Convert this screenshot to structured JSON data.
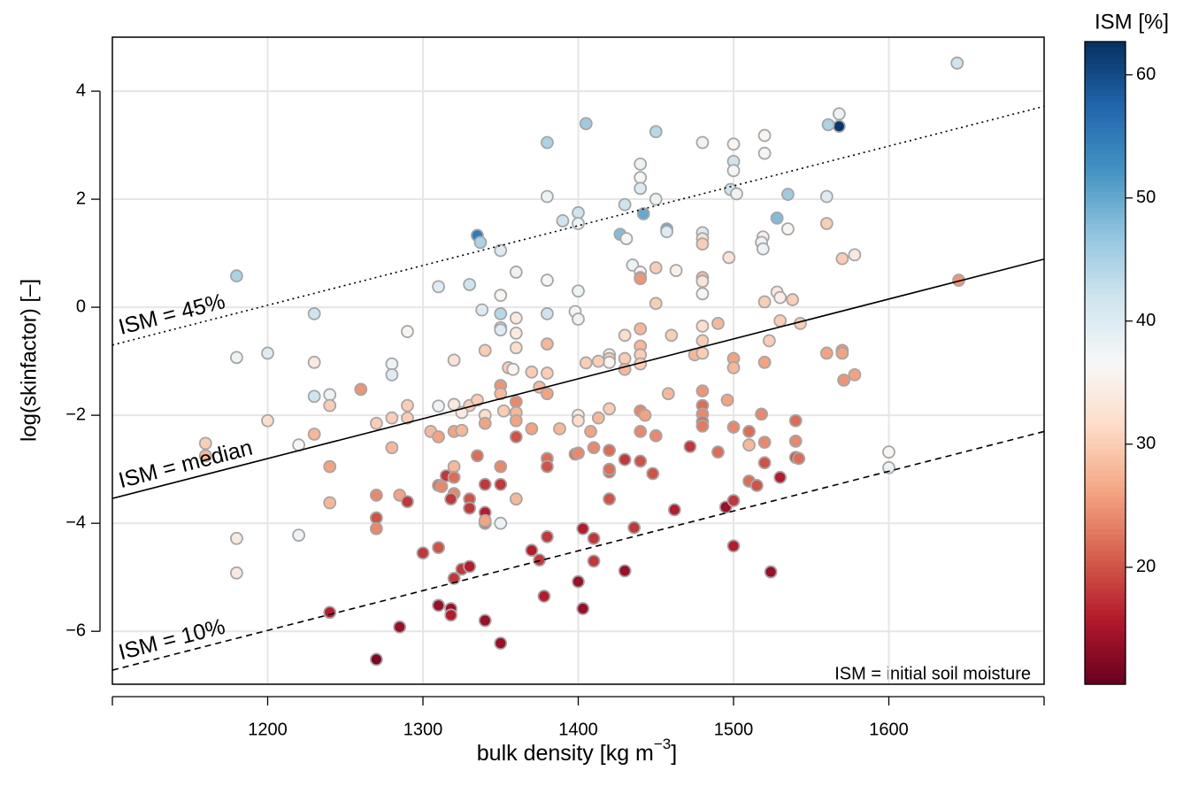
{
  "chart_data": {
    "type": "scatter",
    "x_label": [
      "bulk density [kg m",
      "−3",
      "]"
    ],
    "y_label": "log(skinfactor) [–]",
    "xlim": [
      1100,
      1700
    ],
    "xticks": [
      1200,
      1300,
      1400,
      1500,
      1600
    ],
    "ylim": [
      -6.98,
      5.0
    ],
    "yticks": [
      {
        "value": -6,
        "label": "−6"
      },
      {
        "value": -4,
        "label": "−4"
      },
      {
        "value": -2,
        "label": "−2"
      },
      0,
      2,
      4
    ],
    "grid": true,
    "note": "ISM = initial soil moisture",
    "lines": [
      {
        "name": "ISM = 45%",
        "style": "dotted",
        "x": [
          1100,
          1700
        ],
        "values": [
          -0.7,
          3.72
        ]
      },
      {
        "name": "ISM = median",
        "style": "solid",
        "x": [
          1100,
          1700
        ],
        "values": [
          -3.54,
          0.89
        ]
      },
      {
        "name": "ISM = 10%",
        "style": "dashed",
        "x": [
          1100,
          1700
        ],
        "values": [
          -6.72,
          -2.3
        ]
      }
    ],
    "colorbar": {
      "label": "ISM [%]",
      "lim": [
        10.5,
        62.7
      ],
      "ticks": [
        20,
        30,
        40,
        50,
        60
      ],
      "colors": [
        "#67001f",
        "#b2182b",
        "#d6604d",
        "#f4a582",
        "#fddbc7",
        "#f7f7f7",
        "#d1e5f0",
        "#92c5de",
        "#4393c3",
        "#2166ac",
        "#053061"
      ]
    },
    "x": [
      1644,
      1568,
      1568,
      1561,
      1405,
      1380,
      1450,
      1480,
      1500,
      1520,
      1520,
      1500,
      1500,
      1440,
      1440,
      1440,
      1450,
      1380,
      1400,
      1400,
      1390,
      1430,
      1442,
      1427,
      1431,
      1457,
      1457,
      1498,
      1502,
      1535,
      1560,
      1528,
      1535,
      1560,
      1480,
      1480,
      1480,
      1519,
      1518,
      1519,
      1335,
      1337,
      1350,
      1360,
      1310,
      1330,
      1380,
      1400,
      1435,
      1440,
      1440,
      1440,
      1450,
      1463,
      1497,
      1570,
      1578,
      1480,
      1480,
      1480,
      1450,
      1528,
      1530,
      1520,
      1538,
      1645,
      1180,
      1230,
      1290,
      1338,
      1350,
      1350,
      1360,
      1380,
      1350,
      1350,
      1360,
      1360,
      1380,
      1398,
      1400,
      1430,
      1440,
      1440,
      1440,
      1440,
      1460,
      1480,
      1480,
      1490,
      1475,
      1480,
      1500,
      1500,
      1523,
      1530,
      1543,
      1560,
      1570,
      1570,
      1571,
      1578,
      1180,
      1200,
      1230,
      1280,
      1280,
      1230,
      1240,
      1240,
      1260,
      1320,
      1340,
      1355,
      1358,
      1380,
      1370,
      1405,
      1420,
      1420,
      1420,
      1430,
      1430,
      1413,
      1520,
      1350,
      1350,
      1360,
      1375,
      1380,
      1310,
      1320,
      1330,
      1335,
      1325,
      1340,
      1352,
      1360,
      1360,
      1340,
      1370,
      1388,
      1400,
      1400,
      1420,
      1413,
      1440,
      1443,
      1458,
      1480,
      1480,
      1480,
      1480,
      1480,
      1496,
      1518,
      1540,
      1540,
      1540,
      1542,
      1500,
      1510,
      1520,
      1510,
      1472,
      1490,
      1160,
      1200,
      1230,
      1270,
      1280,
      1290,
      1290,
      1220,
      1280,
      1305,
      1310,
      1320,
      1325,
      1320,
      1335,
      1350,
      1360,
      1380,
      1380,
      1398,
      1400,
      1410,
      1420,
      1420,
      1420,
      1430,
      1440,
      1448,
      1408,
      1440,
      1450,
      1160,
      1240,
      1270,
      1285,
      1290,
      1310,
      1312,
      1315,
      1320,
      1320,
      1318,
      1330,
      1330,
      1340,
      1340,
      1340,
      1340,
      1350,
      1350,
      1360,
      1420,
      1462,
      1495,
      1500,
      1510,
      1515,
      1520,
      1530,
      1240,
      1270,
      1270,
      1180,
      1220,
      1180,
      1300,
      1310,
      1320,
      1325,
      1330,
      1370,
      1375,
      1380,
      1378,
      1400,
      1403,
      1410,
      1410,
      1403,
      1430,
      1436,
      1500,
      1524,
      1240,
      1285,
      1310,
      1318,
      1318,
      1340,
      1350,
      1270,
      1600,
      1600
    ],
    "values": [
      4.52,
      3.58,
      3.35,
      3.38,
      3.4,
      3.05,
      3.25,
      3.05,
      3.02,
      3.18,
      2.85,
      2.7,
      2.53,
      2.65,
      2.4,
      2.2,
      2.0,
      2.05,
      1.75,
      1.55,
      1.6,
      1.9,
      1.73,
      1.35,
      1.27,
      1.45,
      1.4,
      2.18,
      2.1,
      2.09,
      2.05,
      1.65,
      1.45,
      1.55,
      1.38,
      1.27,
      1.17,
      1.3,
      1.2,
      1.08,
      1.33,
      1.2,
      1.05,
      0.65,
      0.38,
      0.42,
      0.5,
      0.3,
      0.78,
      0.65,
      0.55,
      0.53,
      0.73,
      0.68,
      0.92,
      0.9,
      0.97,
      0.55,
      0.48,
      0.25,
      0.07,
      0.28,
      0.18,
      0.1,
      0.14,
      0.5,
      0.58,
      -0.12,
      -0.45,
      -0.05,
      0.22,
      -0.12,
      -0.2,
      -0.12,
      -0.38,
      -0.42,
      -0.48,
      -0.75,
      -0.68,
      -0.08,
      -0.22,
      -0.52,
      -0.4,
      -0.72,
      -0.88,
      -1.05,
      -0.52,
      -0.35,
      -0.62,
      -0.3,
      -0.88,
      -0.85,
      -0.95,
      -1.12,
      -0.62,
      -0.25,
      -0.3,
      -0.85,
      -0.8,
      -0.85,
      -1.35,
      -1.25,
      -0.93,
      -0.85,
      -1.02,
      -1.05,
      -1.25,
      -1.65,
      -1.62,
      -1.82,
      -1.52,
      -0.98,
      -0.8,
      -1.12,
      -1.15,
      -1.22,
      -1.2,
      -1.03,
      -0.88,
      -0.95,
      -1.02,
      -0.95,
      -1.15,
      -1.0,
      -1.02,
      -1.45,
      -1.6,
      -1.75,
      -1.48,
      -1.6,
      -1.83,
      -1.8,
      -1.82,
      -1.72,
      -1.95,
      -2.0,
      -1.92,
      -1.95,
      -2.1,
      -2.15,
      -2.25,
      -2.25,
      -2.0,
      -2.1,
      -1.88,
      -2.05,
      -1.92,
      -2.0,
      -1.6,
      -1.55,
      -1.82,
      -1.98,
      -2.12,
      -2.2,
      -1.72,
      -1.98,
      -2.1,
      -2.48,
      -2.78,
      -2.8,
      -2.22,
      -2.3,
      -2.5,
      -2.55,
      -2.58,
      -2.68,
      -2.52,
      -2.1,
      -2.35,
      -2.15,
      -2.05,
      -2.05,
      -1.82,
      -2.55,
      -2.6,
      -2.3,
      -2.4,
      -2.3,
      -2.28,
      -2.95,
      -2.75,
      -2.95,
      -2.4,
      -2.8,
      -2.95,
      -2.72,
      -2.7,
      -2.6,
      -2.65,
      -3.05,
      -3.0,
      -2.82,
      -2.85,
      -3.08,
      -2.3,
      -2.3,
      -2.38,
      -2.75,
      -2.95,
      -3.48,
      -3.48,
      -3.6,
      -3.3,
      -3.32,
      -3.12,
      -3.15,
      -3.45,
      -3.55,
      -3.55,
      -3.72,
      -3.28,
      -3.8,
      -4.0,
      -3.95,
      -3.28,
      -4.0,
      -3.55,
      -3.55,
      -3.75,
      -3.7,
      -3.58,
      -3.22,
      -3.3,
      -2.88,
      -3.15,
      -3.62,
      -3.9,
      -4.1,
      -4.28,
      -4.22,
      -4.92,
      -4.55,
      -4.45,
      -5.02,
      -4.85,
      -4.8,
      -4.5,
      -4.68,
      -4.25,
      -5.35,
      -5.08,
      -4.1,
      -4.28,
      -4.7,
      -5.58,
      -4.88,
      -4.08,
      -4.42,
      -4.9,
      -5.65,
      -5.92,
      -5.52,
      -5.58,
      -5.7,
      -5.8,
      -6.22,
      -6.52,
      -2.68,
      -2.97
    ],
    "color_values": [
      42,
      38,
      62,
      45,
      46,
      45,
      44,
      38,
      36,
      36,
      37,
      42,
      37,
      38,
      37,
      40,
      38,
      38,
      42,
      38,
      42,
      42,
      50,
      48,
      36,
      50,
      40,
      42,
      38,
      46,
      40,
      48,
      36,
      30,
      40,
      32,
      30,
      35,
      38,
      38,
      55,
      45,
      40,
      38,
      40,
      42,
      36,
      38,
      38,
      36,
      30,
      25,
      30,
      35,
      33,
      30,
      34,
      28,
      33,
      36,
      30,
      34,
      35,
      30,
      30,
      25,
      45,
      42,
      36,
      40,
      36,
      44,
      34,
      42,
      42,
      40,
      34,
      32,
      28,
      36,
      38,
      32,
      28,
      28,
      30,
      30,
      30,
      32,
      30,
      28,
      28,
      30,
      26,
      28,
      30,
      30,
      30,
      26,
      25,
      26,
      25,
      26,
      38,
      40,
      34,
      38,
      40,
      42,
      38,
      30,
      25,
      33,
      30,
      30,
      36,
      30,
      30,
      30,
      36,
      30,
      36,
      30,
      28,
      30,
      26,
      25,
      28,
      24,
      28,
      26,
      38,
      34,
      30,
      30,
      34,
      32,
      30,
      28,
      26,
      26,
      26,
      28,
      34,
      32,
      30,
      28,
      24,
      26,
      28,
      25,
      22,
      24,
      22,
      23,
      26,
      24,
      22,
      24,
      20,
      22,
      24,
      22,
      24,
      28,
      18,
      22,
      30,
      32,
      28,
      30,
      30,
      30,
      30,
      36,
      28,
      28,
      26,
      26,
      28,
      28,
      22,
      24,
      20,
      22,
      20,
      22,
      24,
      24,
      22,
      20,
      22,
      18,
      20,
      20,
      26,
      24,
      24,
      28,
      26,
      24,
      26,
      18,
      22,
      24,
      18,
      22,
      24,
      18,
      20,
      18,
      18,
      16,
      22,
      26,
      18,
      38,
      28,
      20,
      16,
      14,
      18,
      22,
      20,
      20,
      16,
      28,
      20,
      24,
      34,
      38,
      34,
      18,
      20,
      18,
      18,
      16,
      16,
      18,
      18,
      16,
      14,
      16,
      18,
      18,
      14,
      14,
      18,
      16,
      14,
      16,
      14,
      14,
      14,
      16,
      14,
      14,
      12,
      36,
      38
    ]
  }
}
